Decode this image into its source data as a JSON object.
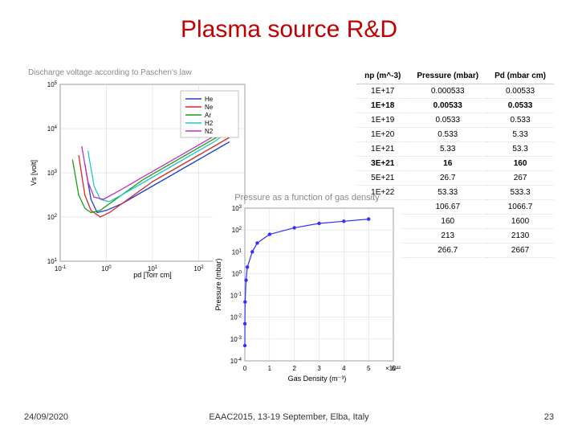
{
  "title": "Plasma source R&D",
  "paschen": {
    "title": "Discharge voltage according to Paschen's law",
    "xlabel": "pd [Torr cm]",
    "ylabel": "Vs [volt]",
    "label_fontsize": 9,
    "xlim": [
      0.1,
      1000
    ],
    "ylim": [
      10,
      100000
    ],
    "legend": [
      {
        "name": "He",
        "color": "#1f3fd4"
      },
      {
        "name": "Ne",
        "color": "#d42a2a"
      },
      {
        "name": "Ar",
        "color": "#1a9e1a"
      },
      {
        "name": "H2",
        "color": "#20c8c8"
      },
      {
        "name": "N2",
        "color": "#c030c0"
      }
    ],
    "series": {
      "He": {
        "color": "#1f3fd4",
        "pts": [
          [
            0.8,
            3.2
          ],
          [
            1.0,
            2.4
          ],
          [
            1.2,
            2.1
          ],
          [
            1.5,
            2.15
          ],
          [
            2.0,
            2.3
          ],
          [
            2.5,
            2.5
          ],
          [
            3.0,
            2.7
          ],
          [
            3.5,
            2.9
          ],
          [
            4.0,
            3.1
          ],
          [
            4.5,
            3.3
          ],
          [
            5.0,
            3.5
          ],
          [
            5.5,
            3.7
          ]
        ]
      },
      "Ne": {
        "color": "#d42a2a",
        "pts": [
          [
            0.6,
            3.4
          ],
          [
            0.8,
            2.5
          ],
          [
            1.0,
            2.15
          ],
          [
            1.3,
            2.0
          ],
          [
            1.6,
            2.1
          ],
          [
            2.0,
            2.3
          ],
          [
            2.5,
            2.55
          ],
          [
            3.0,
            2.8
          ],
          [
            3.5,
            3.0
          ],
          [
            4.0,
            3.2
          ],
          [
            4.5,
            3.4
          ],
          [
            5.0,
            3.6
          ],
          [
            5.5,
            3.8
          ]
        ]
      },
      "Ar": {
        "color": "#1a9e1a",
        "pts": [
          [
            0.4,
            3.3
          ],
          [
            0.6,
            2.5
          ],
          [
            0.8,
            2.2
          ],
          [
            1.0,
            2.1
          ],
          [
            1.3,
            2.15
          ],
          [
            1.7,
            2.35
          ],
          [
            2.2,
            2.6
          ],
          [
            2.7,
            2.85
          ],
          [
            3.2,
            3.05
          ],
          [
            3.7,
            3.25
          ],
          [
            4.2,
            3.45
          ],
          [
            4.7,
            3.65
          ],
          [
            5.2,
            3.85
          ],
          [
            5.5,
            3.95
          ]
        ]
      },
      "H2": {
        "color": "#20c8c8",
        "pts": [
          [
            0.9,
            3.5
          ],
          [
            1.1,
            2.7
          ],
          [
            1.3,
            2.4
          ],
          [
            1.6,
            2.35
          ],
          [
            2.0,
            2.5
          ],
          [
            2.5,
            2.7
          ],
          [
            3.0,
            2.9
          ],
          [
            3.5,
            3.1
          ],
          [
            4.0,
            3.3
          ],
          [
            4.5,
            3.5
          ],
          [
            5.0,
            3.7
          ],
          [
            5.5,
            3.95
          ]
        ]
      },
      "N2": {
        "color": "#c030c0",
        "pts": [
          [
            0.7,
            3.6
          ],
          [
            0.9,
            2.8
          ],
          [
            1.1,
            2.45
          ],
          [
            1.4,
            2.4
          ],
          [
            1.8,
            2.55
          ],
          [
            2.3,
            2.75
          ],
          [
            2.8,
            2.95
          ],
          [
            3.3,
            3.15
          ],
          [
            3.8,
            3.35
          ],
          [
            4.3,
            3.55
          ],
          [
            4.8,
            3.75
          ],
          [
            5.3,
            3.95
          ],
          [
            5.5,
            4.05
          ]
        ]
      }
    },
    "background_color": "#ffffff",
    "grid_color": "#d0d0d0"
  },
  "table": {
    "headers": [
      "np (m^-3)",
      "Pressure (mbar)",
      "Pd (mbar cm)"
    ],
    "rows": [
      {
        "cells": [
          "1E+17",
          "0.000533",
          "0.00533"
        ],
        "bold": false
      },
      {
        "cells": [
          "1E+18",
          "0.00533",
          "0.0533"
        ],
        "bold": true
      },
      {
        "cells": [
          "1E+19",
          "0.0533",
          "0.533"
        ],
        "bold": false
      },
      {
        "cells": [
          "1E+20",
          "0.533",
          "5.33"
        ],
        "bold": false
      },
      {
        "cells": [
          "1E+21",
          "5.33",
          "53.3"
        ],
        "bold": false
      },
      {
        "cells": [
          "3E+21",
          "16",
          "160"
        ],
        "bold": true
      },
      {
        "cells": [
          "5E+21",
          "26.7",
          "267"
        ],
        "bold": false
      },
      {
        "cells": [
          "1E+22",
          "53.33",
          "533.3"
        ],
        "bold": false
      },
      {
        "cells": [
          "",
          "106.67",
          "1066.7"
        ],
        "bold": false
      },
      {
        "cells": [
          "",
          "160",
          "1600"
        ],
        "bold": false
      },
      {
        "cells": [
          "",
          "213",
          "2130"
        ],
        "bold": false
      },
      {
        "cells": [
          "",
          "266.7",
          "2667"
        ],
        "bold": false
      }
    ]
  },
  "pressure_chart": {
    "title": "Pressure as a function of gas density",
    "xlabel": "Gas Density (m⁻³)",
    "ylabel": "Pressure (mbar)",
    "xlim": [
      0,
      6
    ],
    "xfactor": "×10²²",
    "ylim_log": [
      -4,
      3
    ],
    "marker_color": "#3030ff",
    "line_color": "#3030ff",
    "background_color": "#ffffff",
    "points_xy": [
      [
        0.001,
        -3.3
      ],
      [
        0.002,
        -2.3
      ],
      [
        0.01,
        -1.3
      ],
      [
        0.05,
        -0.3
      ],
      [
        0.1,
        0.3
      ],
      [
        0.3,
        1.0
      ],
      [
        0.5,
        1.4
      ],
      [
        1.0,
        1.8
      ],
      [
        2.0,
        2.1
      ],
      [
        3.0,
        2.3
      ],
      [
        4.0,
        2.4
      ],
      [
        5.0,
        2.5
      ]
    ],
    "label_fontsize": 9
  },
  "footer": {
    "date": "24/09/2020",
    "center": "EAAC2015, 13-19 September, Elba, Italy",
    "page": "23"
  }
}
